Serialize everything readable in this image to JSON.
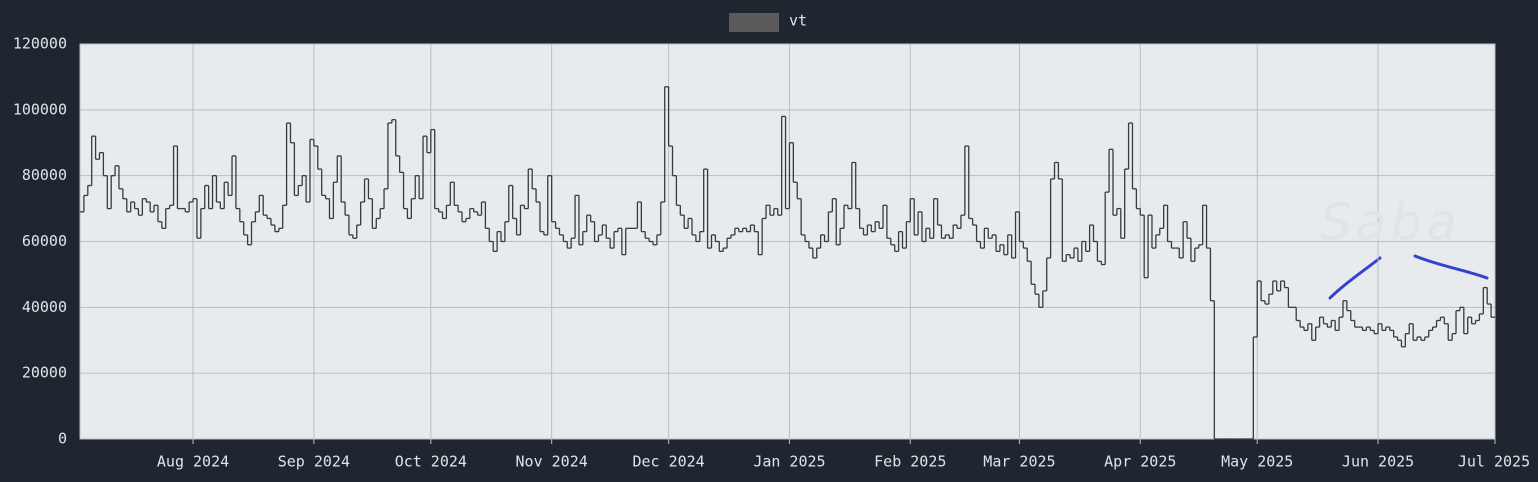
{
  "chart_data": {
    "type": "line",
    "step": true,
    "categories": [
      null,
      null,
      null,
      null,
      null,
      null,
      null,
      null,
      null,
      null,
      null,
      null,
      null,
      null,
      null,
      null,
      null,
      null,
      null,
      null,
      null,
      null,
      null,
      null,
      null,
      null,
      null,
      null,
      null,
      "Aug 2024",
      null,
      null,
      null,
      null,
      null,
      null,
      null,
      null,
      null,
      null,
      null,
      null,
      null,
      null,
      null,
      null,
      null,
      null,
      null,
      null,
      null,
      null,
      null,
      null,
      null,
      null,
      null,
      null,
      null,
      null,
      "Sep 2024",
      null,
      null,
      null,
      null,
      null,
      null,
      null,
      null,
      null,
      null,
      null,
      null,
      null,
      null,
      null,
      null,
      null,
      null,
      null,
      null,
      null,
      null,
      null,
      null,
      null,
      null,
      null,
      null,
      null,
      "Oct 2024",
      null,
      null,
      null,
      null,
      null,
      null,
      null,
      null,
      null,
      null,
      null,
      null,
      null,
      null,
      null,
      null,
      null,
      null,
      null,
      null,
      null,
      null,
      null,
      null,
      null,
      null,
      null,
      null,
      null,
      null,
      "Nov 2024",
      null,
      null,
      null,
      null,
      null,
      null,
      null,
      null,
      null,
      null,
      null,
      null,
      null,
      null,
      null,
      null,
      null,
      null,
      null,
      null,
      null,
      null,
      null,
      null,
      null,
      null,
      null,
      null,
      null,
      "Dec 2024",
      null,
      null,
      null,
      null,
      null,
      null,
      null,
      null,
      null,
      null,
      null,
      null,
      null,
      null,
      null,
      null,
      null,
      null,
      null,
      null,
      null,
      null,
      null,
      null,
      null,
      null,
      null,
      null,
      null,
      null,
      "Jan 2025",
      null,
      null,
      null,
      null,
      null,
      null,
      null,
      null,
      null,
      null,
      null,
      null,
      null,
      null,
      null,
      null,
      null,
      null,
      null,
      null,
      null,
      null,
      null,
      null,
      null,
      null,
      null,
      null,
      null,
      null,
      "Feb 2025",
      null,
      null,
      null,
      null,
      null,
      null,
      null,
      null,
      null,
      null,
      null,
      null,
      null,
      null,
      null,
      null,
      null,
      null,
      null,
      null,
      null,
      null,
      null,
      null,
      null,
      null,
      null,
      "Mar 2025",
      null,
      null,
      null,
      null,
      null,
      null,
      null,
      null,
      null,
      null,
      null,
      null,
      null,
      null,
      null,
      null,
      null,
      null,
      null,
      null,
      null,
      null,
      null,
      null,
      null,
      null,
      null,
      null,
      null,
      null,
      "Apr 2025",
      null,
      null,
      null,
      null,
      null,
      null,
      null,
      null,
      null,
      null,
      null,
      null,
      null,
      null,
      null,
      null,
      null,
      null,
      null,
      null,
      null,
      null,
      null,
      null,
      null,
      null,
      null,
      null,
      null,
      "May 2025",
      null,
      null,
      null,
      null,
      null,
      null,
      null,
      null,
      null,
      null,
      null,
      null,
      null,
      null,
      null,
      null,
      null,
      null,
      null,
      null,
      null,
      null,
      null,
      null,
      null,
      null,
      null,
      null,
      null,
      null,
      "Jun 2025",
      null,
      null,
      null,
      null,
      null,
      null,
      null,
      null,
      null,
      null,
      null,
      null,
      null,
      null,
      null,
      null,
      null,
      null,
      null,
      null,
      null,
      null,
      null,
      null,
      null,
      null,
      null,
      null,
      null,
      "Jul 2025"
    ],
    "series": [
      {
        "name": "vt",
        "color": "#3a3a3a",
        "legend_color": "#5a5a5a",
        "values": [
          69000,
          74000,
          77000,
          92000,
          85000,
          87000,
          80000,
          70000,
          80000,
          83000,
          76000,
          73000,
          69000,
          72000,
          70000,
          68000,
          73000,
          72000,
          69000,
          71000,
          66000,
          64000,
          70000,
          71000,
          89000,
          70000,
          70000,
          69000,
          72000,
          73000,
          61000,
          70000,
          77000,
          70000,
          80000,
          72000,
          70000,
          78000,
          74000,
          86000,
          70000,
          66000,
          62000,
          59000,
          66000,
          69000,
          74000,
          68000,
          67000,
          65000,
          63000,
          64000,
          71000,
          96000,
          90000,
          74000,
          77000,
          80000,
          72000,
          91000,
          89000,
          82000,
          74000,
          73000,
          67000,
          78000,
          86000,
          72000,
          68000,
          62000,
          61000,
          65000,
          72000,
          79000,
          73000,
          64000,
          67000,
          70000,
          76000,
          96000,
          97000,
          86000,
          81000,
          70000,
          67000,
          73000,
          80000,
          73000,
          92000,
          87000,
          94000,
          70000,
          69000,
          67000,
          71000,
          78000,
          71000,
          69000,
          66000,
          67000,
          70000,
          69000,
          68000,
          72000,
          64000,
          60000,
          57000,
          63000,
          60000,
          66000,
          77000,
          67000,
          62000,
          71000,
          70000,
          82000,
          76000,
          72000,
          63000,
          62000,
          80000,
          66000,
          64000,
          62000,
          60000,
          58000,
          61000,
          74000,
          59000,
          63000,
          68000,
          66000,
          60000,
          62000,
          65000,
          61000,
          58000,
          63000,
          64000,
          56000,
          64000,
          64000,
          64000,
          72000,
          63000,
          61000,
          60000,
          59000,
          62000,
          72000,
          107000,
          89000,
          80000,
          71000,
          68000,
          64000,
          67000,
          62000,
          60000,
          63000,
          82000,
          58000,
          62000,
          60000,
          57000,
          58000,
          61000,
          62000,
          64000,
          63000,
          64000,
          63000,
          65000,
          63000,
          56000,
          67000,
          71000,
          68000,
          70000,
          68000,
          98000,
          70000,
          90000,
          78000,
          73000,
          62000,
          60000,
          58000,
          55000,
          58000,
          62000,
          60000,
          69000,
          73000,
          59000,
          64000,
          71000,
          70000,
          84000,
          70000,
          64000,
          62000,
          65000,
          63000,
          66000,
          64000,
          71000,
          61000,
          59000,
          57000,
          63000,
          58000,
          66000,
          73000,
          62000,
          69000,
          60000,
          64000,
          61000,
          73000,
          65000,
          61000,
          62000,
          61000,
          65000,
          64000,
          68000,
          89000,
          67000,
          65000,
          60000,
          58000,
          64000,
          61000,
          62000,
          57000,
          59000,
          56000,
          62000,
          55000,
          69000,
          60000,
          58000,
          54000,
          47000,
          44000,
          40000,
          45000,
          55000,
          79000,
          84000,
          79000,
          54000,
          56000,
          55000,
          58000,
          54000,
          60000,
          57000,
          65000,
          60000,
          54000,
          53000,
          75000,
          88000,
          68000,
          70000,
          61000,
          82000,
          96000,
          76000,
          70000,
          68000,
          49000,
          68000,
          58000,
          62000,
          64000,
          71000,
          60000,
          58000,
          58000,
          55000,
          66000,
          61000,
          54000,
          58000,
          59000,
          71000,
          58000,
          42000,
          0,
          0,
          0,
          0,
          0,
          0,
          0,
          0,
          0,
          0,
          31000,
          48000,
          42000,
          41000,
          44000,
          48000,
          45000,
          48000,
          46000,
          40000,
          40000,
          36000,
          34000,
          33000,
          35000,
          30000,
          34000,
          37000,
          35000,
          34000,
          36000,
          33000,
          37000,
          42000,
          39000,
          36000,
          34000,
          34000,
          33000,
          34000,
          33000,
          32000,
          35000,
          33000,
          34000,
          33000,
          31000,
          30000,
          28000,
          32000,
          35000,
          30000,
          31000,
          30000,
          31000,
          33000,
          34000,
          36000,
          37000,
          35000,
          30000,
          32000,
          39000,
          40000,
          32000,
          37000,
          35000,
          36000,
          38000,
          46000,
          41000,
          37000,
          37000
        ]
      }
    ],
    "ylim": [
      0,
      120000
    ],
    "yticks": [
      0,
      20000,
      40000,
      60000,
      80000,
      100000,
      120000
    ],
    "grid": true,
    "legend": "top",
    "annotations": [
      {
        "text": "Saba",
        "color": "#3344cc"
      }
    ]
  }
}
